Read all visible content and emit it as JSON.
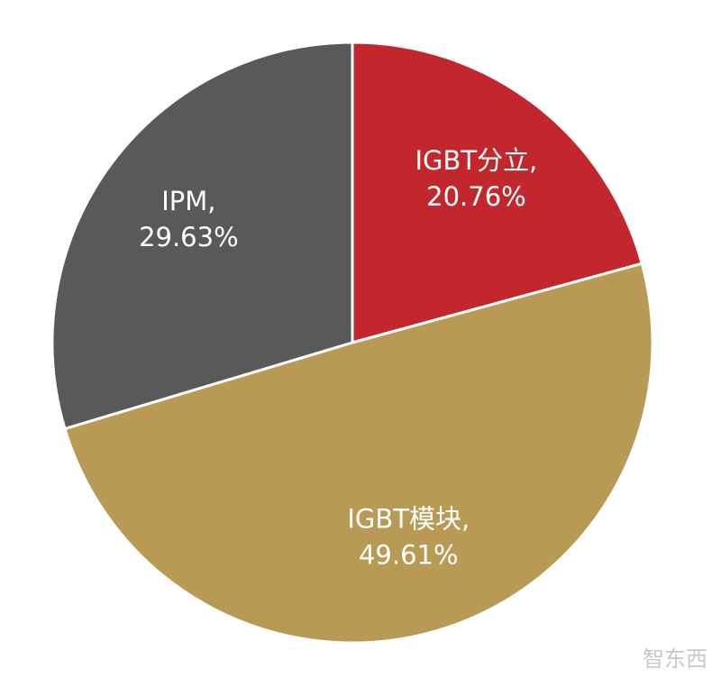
{
  "chart_data": {
    "type": "pie",
    "categories": [
      "IGBT分立,",
      "IGBT模块,",
      "IPM,"
    ],
    "values": [
      20.76,
      49.61,
      29.63
    ],
    "value_labels": [
      "20.76%",
      "49.61%",
      "29.63%"
    ],
    "colors": [
      "#c1272d",
      "#b89a55",
      "#595959"
    ],
    "watermark": "智东西"
  }
}
